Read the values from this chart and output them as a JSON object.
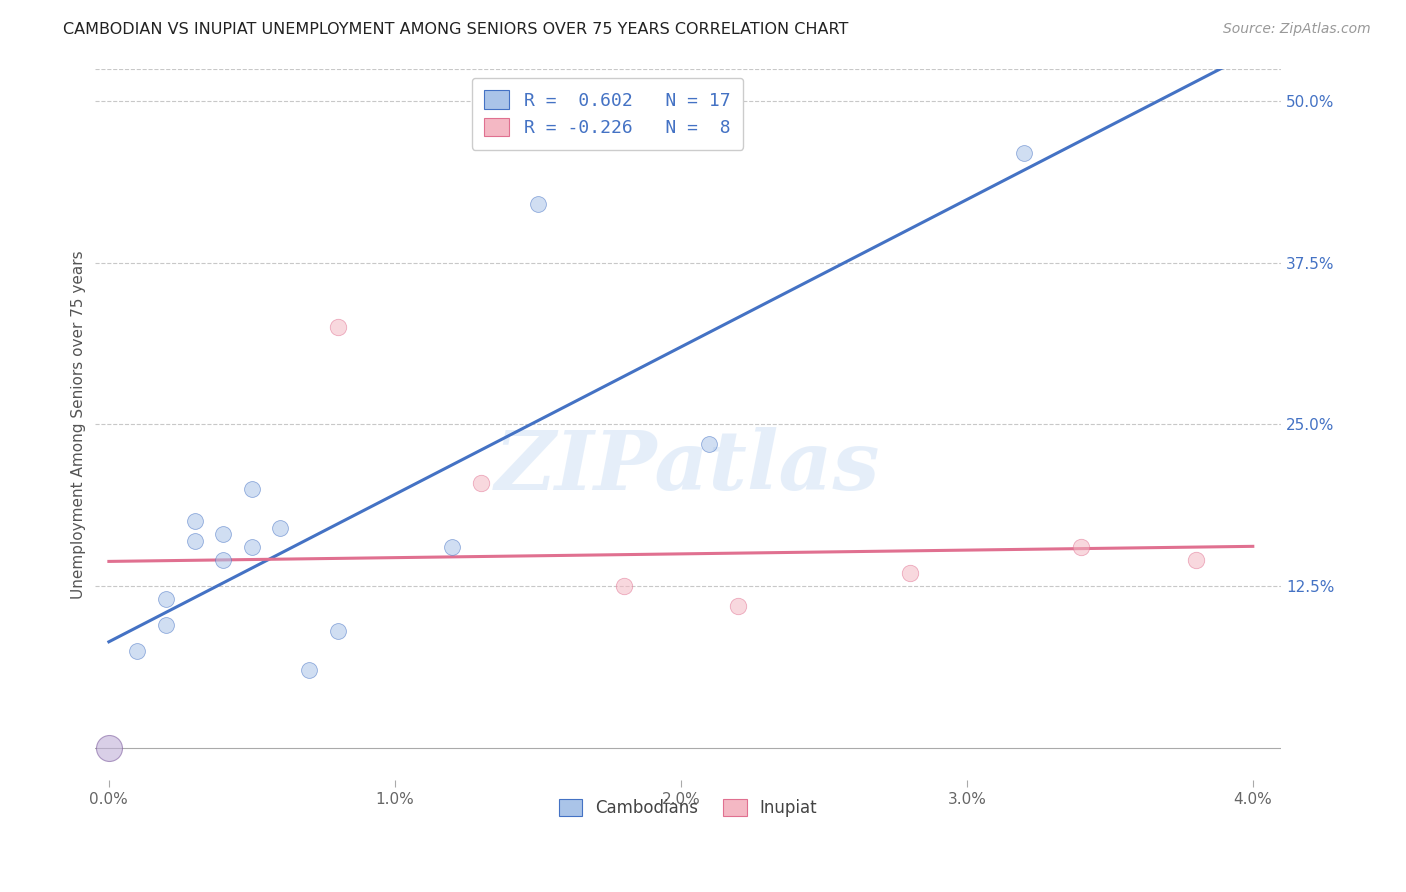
{
  "title": "CAMBODIAN VS INUPIAT UNEMPLOYMENT AMONG SENIORS OVER 75 YEARS CORRELATION CHART",
  "source": "Source: ZipAtlas.com",
  "ylabel": "Unemployment Among Seniors over 75 years",
  "watermark": "ZIPatlas",
  "xlim": [
    -0.0005,
    0.041
  ],
  "ylim": [
    -0.025,
    0.525
  ],
  "xtick_labels": [
    "0.0%",
    "1.0%",
    "2.0%",
    "3.0%",
    "4.0%"
  ],
  "xtick_vals": [
    0.0,
    0.01,
    0.02,
    0.03,
    0.04
  ],
  "ytick_labels": [
    "12.5%",
    "25.0%",
    "37.5%",
    "50.0%"
  ],
  "ytick_vals": [
    0.125,
    0.25,
    0.375,
    0.5
  ],
  "cambodian_x": [
    0.0,
    0.001,
    0.002,
    0.002,
    0.003,
    0.003,
    0.004,
    0.004,
    0.005,
    0.005,
    0.006,
    0.007,
    0.008,
    0.012,
    0.015,
    0.021,
    0.032
  ],
  "cambodian_y": [
    0.0,
    0.075,
    0.115,
    0.095,
    0.175,
    0.16,
    0.165,
    0.145,
    0.2,
    0.155,
    0.17,
    0.06,
    0.09,
    0.155,
    0.42,
    0.235,
    0.46
  ],
  "inupiat_x": [
    0.0,
    0.008,
    0.013,
    0.018,
    0.022,
    0.028,
    0.034,
    0.038
  ],
  "inupiat_y": [
    0.0,
    0.325,
    0.205,
    0.125,
    0.11,
    0.135,
    0.155,
    0.145
  ],
  "cambodian_color": "#aac4e8",
  "inupiat_color": "#f4b8c4",
  "cambodian_line_color": "#4472c4",
  "inupiat_line_color": "#e07090",
  "legend_R_cambodian": "R =  0.602   N = 17",
  "legend_R_inupiat": "R = -0.226   N =  8",
  "background_color": "#ffffff",
  "grid_color": "#c8c8c8",
  "marker_size_cambodian": 130,
  "marker_size_inupiat": 140,
  "marker_size_overlap": 350,
  "marker_alpha": 0.55
}
